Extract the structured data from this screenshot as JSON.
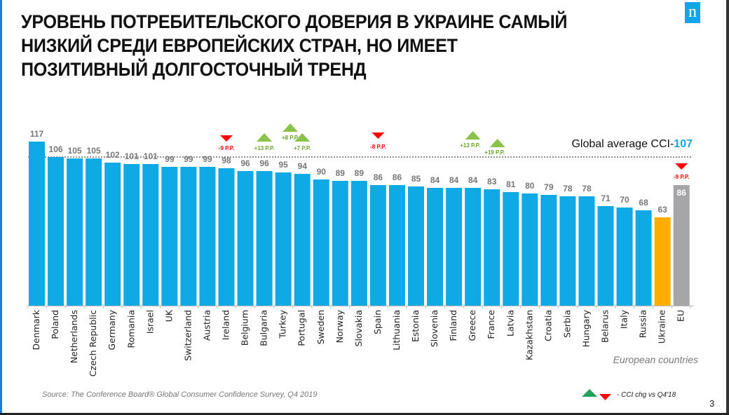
{
  "slide": {
    "title_lines": [
      "УРОВЕНЬ ПОТРЕБИТЕЛЬСКОГО ДОВЕРИЯ В УКРАИНЕ САМЫЙ",
      "НИЗКИЙ СРЕДИ ЕВРОПЕЙСКИХ СТРАН, НО ИМЕЕТ",
      "ПОЗИТИВНЫЙ ДОЛГОСТОЧНЫЙ ТРЕНД"
    ],
    "logo_letter": "n",
    "source": "Source: The Conference Board® Global Consumer Confidence Survey, Q4 2019",
    "legend_text": "- CCI  chg vs  Q4'18",
    "page_number": "3"
  },
  "colors": {
    "bar_default": "#0FA9E6",
    "bar_ukraine": "#FFAE00",
    "bar_eu": "#A6A6A8",
    "value_label": "#777777",
    "increase": "#8BC34A",
    "decrease": "#FF0000",
    "legend_up": "#21A35B",
    "global_value": "#1BA3DD"
  },
  "chart_data": {
    "type": "bar",
    "title": "",
    "xlabel": "European countries",
    "ylabel": "",
    "ylim": [
      0,
      120
    ],
    "grid": false,
    "categories": [
      "Denmark",
      "Poland",
      "Netherlands",
      "Czech Republic",
      "Germany",
      "Romania",
      "Israel",
      "UK",
      "Switzerland",
      "Austria",
      "Ireland",
      "Belgium",
      "Bulgaria",
      "Turkey",
      "Portugal",
      "Sweden",
      "Norway",
      "Slovakia",
      "Spain",
      "Lithuania",
      "Estonia",
      "Slovenia",
      "Finland",
      "Greece",
      "France",
      "Latvia",
      "Kazakhstan",
      "Croatia",
      "Serbia",
      "Hungary",
      "Belarus",
      "Italy",
      "Russia",
      "Ukraine",
      "EU"
    ],
    "values": [
      117,
      106,
      105,
      105,
      102,
      101,
      101,
      99,
      99,
      99,
      98,
      96,
      96,
      95,
      94,
      90,
      89,
      89,
      86,
      86,
      85,
      84,
      84,
      84,
      83,
      81,
      80,
      79,
      78,
      78,
      71,
      70,
      68,
      63,
      86
    ],
    "highlight": {
      "Ukraine": "bar_ukraine",
      "EU": "bar_eu"
    },
    "reference_line": {
      "label_prefix": "Global average CCI-",
      "value_label": "107",
      "value": 107,
      "style": "dashed"
    },
    "annotations": [
      {
        "category": "Ireland",
        "direction": "down",
        "text": "-9 P.P."
      },
      {
        "category": "Bulgaria",
        "direction": "up",
        "text": "+13 P.P."
      },
      {
        "category": "Turkey",
        "direction": "up",
        "text": "+8 P.P."
      },
      {
        "category": "Portugal",
        "direction": "up",
        "text": "+7 P.P."
      },
      {
        "category": "Spain",
        "direction": "down",
        "text": "-8 P.P."
      },
      {
        "category": "Greece",
        "direction": "up",
        "text": "+13 P.P."
      },
      {
        "category": "France",
        "direction": "up",
        "text": "+19 P.P."
      },
      {
        "category": "EU",
        "direction": "down",
        "text": "-9 P.P."
      }
    ]
  }
}
